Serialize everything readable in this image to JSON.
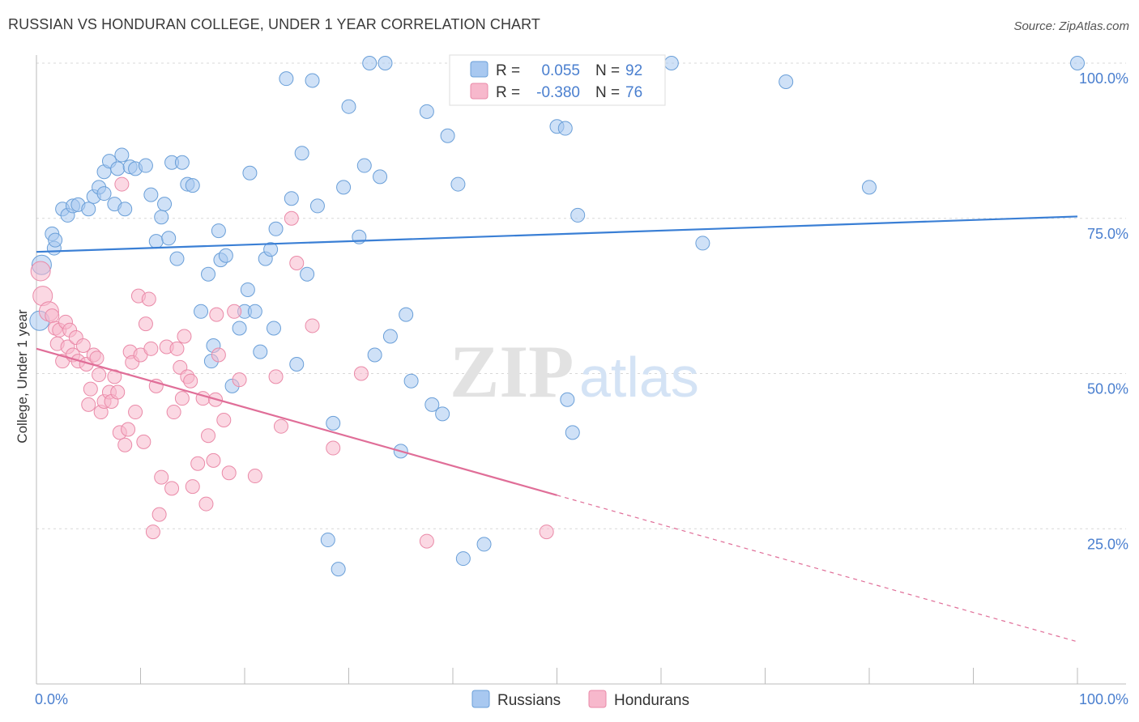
{
  "title": "RUSSIAN VS HONDURAN COLLEGE, UNDER 1 YEAR CORRELATION CHART",
  "source": "Source: ZipAtlas.com",
  "watermark": {
    "zip": "ZIP",
    "atlas": "atlas"
  },
  "colors": {
    "russians_fill": "#a8c8f0",
    "russians_stroke": "#6a9fd8",
    "russians_line": "#3a7fd5",
    "hondurans_fill": "#f7b8cc",
    "hondurans_stroke": "#ea8aa8",
    "hondurans_line": "#e06e98",
    "tick_label": "#4a7fcf",
    "grid": "#d8d8d8"
  },
  "legend": {
    "rows": [
      {
        "r_label": "R =",
        "r_value": "0.055",
        "n_label": "N =",
        "n_value": "92"
      },
      {
        "r_label": "R =",
        "r_value": "-0.380",
        "n_label": "N =",
        "n_value": "76"
      }
    ],
    "bottom": [
      "Russians",
      "Hondurans"
    ]
  },
  "chart_data": {
    "type": "scatter",
    "title": "RUSSIAN VS HONDURAN COLLEGE, UNDER 1 YEAR CORRELATION CHART",
    "xlabel": "",
    "ylabel": "College, Under 1 year",
    "xlim": [
      0,
      100
    ],
    "ylim": [
      0,
      100
    ],
    "x_tick_labels": [
      "0.0%",
      "100.0%"
    ],
    "y_tick_labels": [
      "25.0%",
      "50.0%",
      "75.0%",
      "100.0%"
    ],
    "y_ticks": [
      25,
      50,
      75,
      100
    ],
    "grid": "horizontal dashed",
    "legend_position": "top-center",
    "series": [
      {
        "name": "Russians",
        "r": 0.055,
        "n": 92,
        "trend": {
          "x": [
            0,
            100
          ],
          "y": [
            69.6,
            75.3
          ],
          "dashed_from": null
        },
        "points": [
          [
            0.3,
            58.5
          ],
          [
            0.5,
            67.5
          ],
          [
            1.5,
            72.5
          ],
          [
            1.7,
            70.2
          ],
          [
            1.8,
            71.5
          ],
          [
            2.5,
            76.5
          ],
          [
            3,
            75.5
          ],
          [
            3.5,
            77
          ],
          [
            4,
            77.2
          ],
          [
            5,
            76.5
          ],
          [
            5.5,
            78.5
          ],
          [
            6,
            80
          ],
          [
            6.5,
            79
          ],
          [
            6.5,
            82.5
          ],
          [
            7,
            84.2
          ],
          [
            7.5,
            77.3
          ],
          [
            7.8,
            83
          ],
          [
            8.2,
            85.2
          ],
          [
            8.5,
            76.5
          ],
          [
            9,
            83.3
          ],
          [
            9.5,
            83
          ],
          [
            10.5,
            83.5
          ],
          [
            11,
            78.8
          ],
          [
            11.5,
            71.3
          ],
          [
            12,
            75.2
          ],
          [
            12.3,
            77.3
          ],
          [
            12.7,
            71.8
          ],
          [
            13,
            84
          ],
          [
            13.5,
            68.5
          ],
          [
            14,
            84
          ],
          [
            14.5,
            80.5
          ],
          [
            15,
            80.3
          ],
          [
            15.8,
            60
          ],
          [
            16.5,
            66
          ],
          [
            16.8,
            52
          ],
          [
            17,
            54.5
          ],
          [
            17.5,
            73
          ],
          [
            17.7,
            68.3
          ],
          [
            18.2,
            69
          ],
          [
            18.8,
            48
          ],
          [
            19.5,
            57.3
          ],
          [
            20,
            60
          ],
          [
            20.3,
            63.5
          ],
          [
            20.5,
            82.3
          ],
          [
            21,
            60
          ],
          [
            21.5,
            53.5
          ],
          [
            22,
            68.5
          ],
          [
            22.5,
            70
          ],
          [
            22.8,
            57.3
          ],
          [
            23,
            73.3
          ],
          [
            24,
            97.5
          ],
          [
            24.5,
            78.2
          ],
          [
            25,
            51.5
          ],
          [
            25.5,
            85.5
          ],
          [
            26,
            66
          ],
          [
            26.5,
            97.2
          ],
          [
            27,
            77
          ],
          [
            28,
            23.2
          ],
          [
            28.5,
            42
          ],
          [
            29,
            18.5
          ],
          [
            29.5,
            80
          ],
          [
            30,
            93
          ],
          [
            31,
            72
          ],
          [
            31.5,
            83.5
          ],
          [
            32,
            100
          ],
          [
            32.5,
            53
          ],
          [
            33,
            81.7
          ],
          [
            33.5,
            100
          ],
          [
            34,
            56
          ],
          [
            35,
            37.5
          ],
          [
            35.5,
            59.5
          ],
          [
            36,
            48.8
          ],
          [
            37.5,
            92.2
          ],
          [
            38,
            45
          ],
          [
            39,
            43.5
          ],
          [
            39.5,
            88.3
          ],
          [
            40.5,
            80.5
          ],
          [
            41,
            20.2
          ],
          [
            43,
            22.5
          ],
          [
            47.5,
            100
          ],
          [
            50,
            89.8
          ],
          [
            50.8,
            89.5
          ],
          [
            51,
            45.8
          ],
          [
            51.5,
            40.5
          ],
          [
            52,
            75.5
          ],
          [
            59,
            100
          ],
          [
            61,
            100
          ],
          [
            64,
            71
          ],
          [
            72,
            97
          ],
          [
            80,
            80
          ],
          [
            100,
            100
          ]
        ]
      },
      {
        "name": "Hondurans",
        "r": -0.38,
        "n": 76,
        "trend": {
          "x": [
            0,
            100
          ],
          "y": [
            54,
            6.8
          ],
          "dashed_from": 50
        },
        "points": [
          [
            0.4,
            66.5
          ],
          [
            0.6,
            62.5
          ],
          [
            1.2,
            60
          ],
          [
            1.5,
            59.3
          ],
          [
            1.8,
            57.3
          ],
          [
            2,
            54.8
          ],
          [
            2.2,
            57
          ],
          [
            2.5,
            52
          ],
          [
            2.8,
            58.3
          ],
          [
            3,
            54.3
          ],
          [
            3.2,
            57
          ],
          [
            3.5,
            53
          ],
          [
            3.8,
            55.8
          ],
          [
            4,
            52
          ],
          [
            4.5,
            54.5
          ],
          [
            4.8,
            51.5
          ],
          [
            5,
            45
          ],
          [
            5.2,
            47.5
          ],
          [
            5.5,
            53
          ],
          [
            5.8,
            52.5
          ],
          [
            6,
            49.8
          ],
          [
            6.2,
            43.8
          ],
          [
            6.5,
            45.5
          ],
          [
            7,
            47
          ],
          [
            7.2,
            45.5
          ],
          [
            7.5,
            49.5
          ],
          [
            7.8,
            47
          ],
          [
            8,
            40.5
          ],
          [
            8.2,
            80.5
          ],
          [
            8.5,
            38.5
          ],
          [
            8.8,
            41
          ],
          [
            9,
            53.5
          ],
          [
            9.2,
            51.8
          ],
          [
            9.5,
            43.8
          ],
          [
            9.8,
            62.5
          ],
          [
            10,
            53
          ],
          [
            10.3,
            39
          ],
          [
            10.5,
            58
          ],
          [
            10.8,
            62
          ],
          [
            11,
            54
          ],
          [
            11.2,
            24.5
          ],
          [
            11.5,
            48
          ],
          [
            11.8,
            27.3
          ],
          [
            12,
            33.3
          ],
          [
            12.5,
            54.3
          ],
          [
            13,
            31.5
          ],
          [
            13.2,
            43.8
          ],
          [
            13.5,
            54
          ],
          [
            13.8,
            51
          ],
          [
            14,
            46
          ],
          [
            14.2,
            56
          ],
          [
            14.5,
            49.5
          ],
          [
            14.8,
            48.8
          ],
          [
            15,
            31.8
          ],
          [
            15.5,
            35.5
          ],
          [
            16,
            46
          ],
          [
            16.3,
            29
          ],
          [
            16.5,
            40
          ],
          [
            17,
            36
          ],
          [
            17.3,
            59.5
          ],
          [
            17.5,
            53
          ],
          [
            18,
            42.5
          ],
          [
            18.5,
            34
          ],
          [
            19,
            60
          ],
          [
            19.5,
            49
          ],
          [
            21,
            33.5
          ],
          [
            23,
            49.5
          ],
          [
            23.5,
            41.5
          ],
          [
            24.5,
            75
          ],
          [
            25,
            67.8
          ],
          [
            26.5,
            57.7
          ],
          [
            28.5,
            38
          ],
          [
            31.2,
            50
          ],
          [
            37.5,
            23
          ],
          [
            49,
            24.5
          ],
          [
            17.2,
            45.8
          ]
        ]
      }
    ]
  }
}
